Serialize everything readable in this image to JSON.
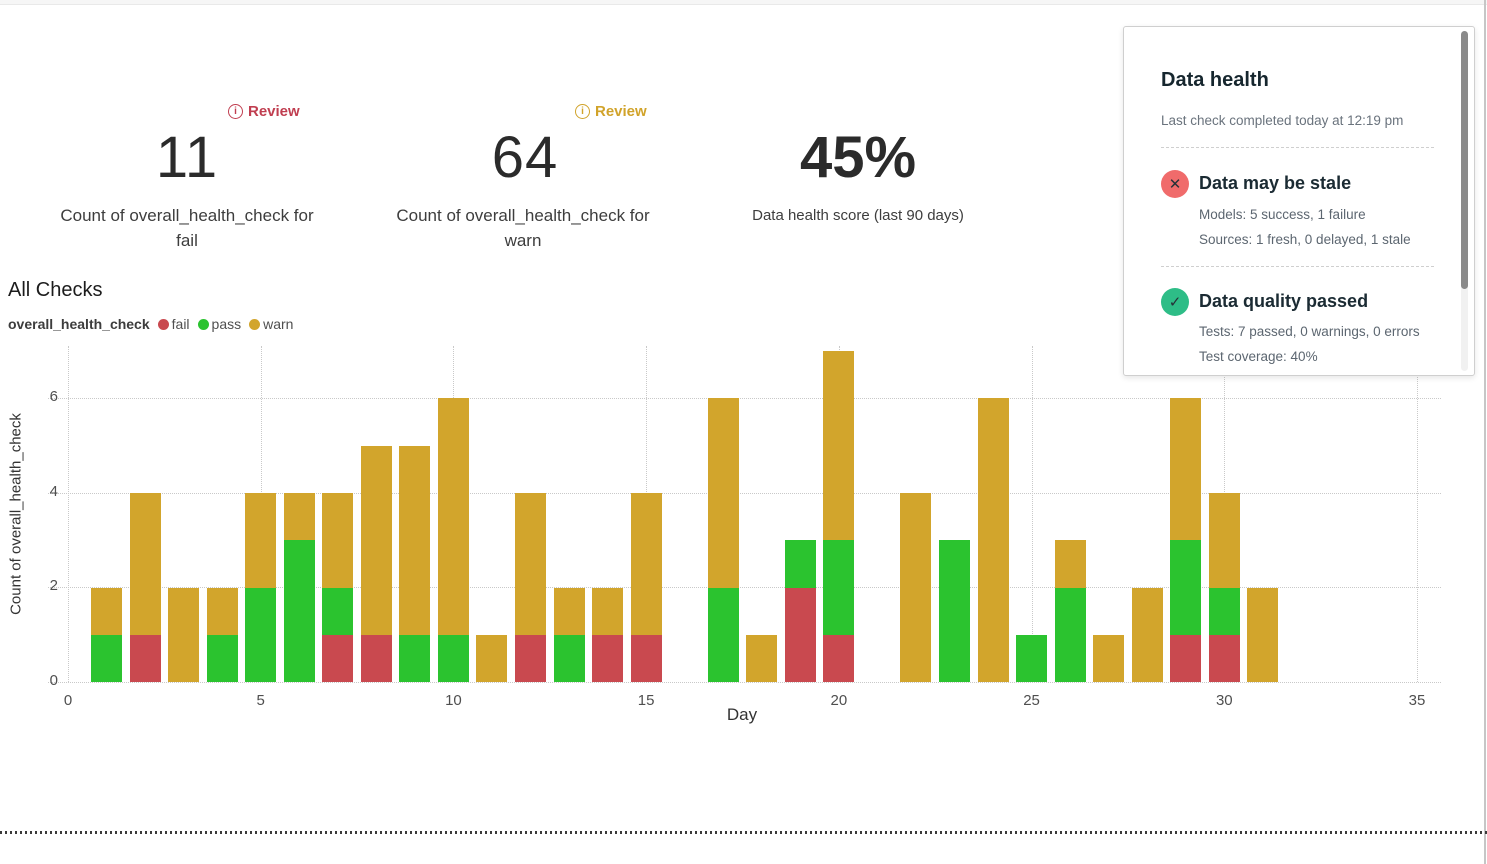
{
  "kpis": [
    {
      "badge": "Review",
      "value": "11",
      "label": "Count of overall_health_check for fail"
    },
    {
      "badge": "Review",
      "value": "64",
      "label": "Count of overall_health_check for warn"
    },
    {
      "value": "45%",
      "label": "Data health score (last 90 days)"
    }
  ],
  "section_title": "All Checks",
  "legend": {
    "series_name": "overall_health_check",
    "items": [
      {
        "label": "fail",
        "color": "#c9494f"
      },
      {
        "label": "pass",
        "color": "#2bc32f"
      },
      {
        "label": "warn",
        "color": "#d2a52c"
      }
    ]
  },
  "chart_data": {
    "type": "bar",
    "stacked": true,
    "title": "All Checks",
    "xlabel": "Day",
    "ylabel": "Count of overall_health_check",
    "x_ticks": [
      0,
      5,
      10,
      15,
      20,
      25,
      30,
      35
    ],
    "y_ticks": [
      0,
      2,
      4,
      6
    ],
    "xlim": [
      0,
      35
    ],
    "ylim": [
      0,
      7
    ],
    "grid": true,
    "legend_position": "top-left",
    "days": [
      1,
      2,
      3,
      4,
      5,
      6,
      7,
      8,
      9,
      10,
      11,
      12,
      13,
      14,
      15,
      16,
      17,
      18,
      19,
      20,
      21,
      22,
      23,
      24,
      25,
      26,
      27,
      28,
      29,
      30,
      31
    ],
    "series": [
      {
        "name": "fail",
        "color": "#c9494f",
        "values": [
          0,
          1,
          0,
          0,
          0,
          0,
          1,
          1,
          0,
          0,
          0,
          1,
          0,
          1,
          1,
          0,
          0,
          0,
          2,
          1,
          0,
          0,
          0,
          0,
          0,
          0,
          0,
          0,
          1,
          1,
          0
        ]
      },
      {
        "name": "pass",
        "color": "#2bc32f",
        "values": [
          1,
          0,
          0,
          1,
          2,
          3,
          1,
          0,
          1,
          1,
          0,
          0,
          1,
          0,
          0,
          0,
          2,
          0,
          1,
          2,
          0,
          0,
          3,
          0,
          1,
          2,
          0,
          0,
          2,
          1,
          0
        ]
      },
      {
        "name": "warn",
        "color": "#d2a52c",
        "values": [
          1,
          3,
          2,
          1,
          2,
          1,
          2,
          4,
          4,
          5,
          1,
          3,
          1,
          1,
          3,
          0,
          4,
          1,
          0,
          4,
          0,
          4,
          0,
          6,
          0,
          1,
          1,
          2,
          3,
          2,
          2
        ]
      }
    ],
    "totals": {
      "fail": 11,
      "pass": 25,
      "warn": 64
    }
  },
  "health_panel": {
    "title": "Data health",
    "subtitle": "Last check completed today at 12:19 pm",
    "sections": [
      {
        "icon": "x-circle",
        "icon_color": "#f06b6b",
        "glyph": "✕",
        "title": "Data may be stale",
        "lines": [
          "Models: 5 success, 1 failure",
          "Sources: 1 fresh, 0 delayed, 1 stale"
        ]
      },
      {
        "icon": "check-circle",
        "icon_color": "#2ebd87",
        "glyph": "✓",
        "title": "Data quality passed",
        "lines": [
          "Tests: 7 passed, 0 warnings, 0 errors",
          "Test coverage: 40%"
        ]
      }
    ]
  }
}
